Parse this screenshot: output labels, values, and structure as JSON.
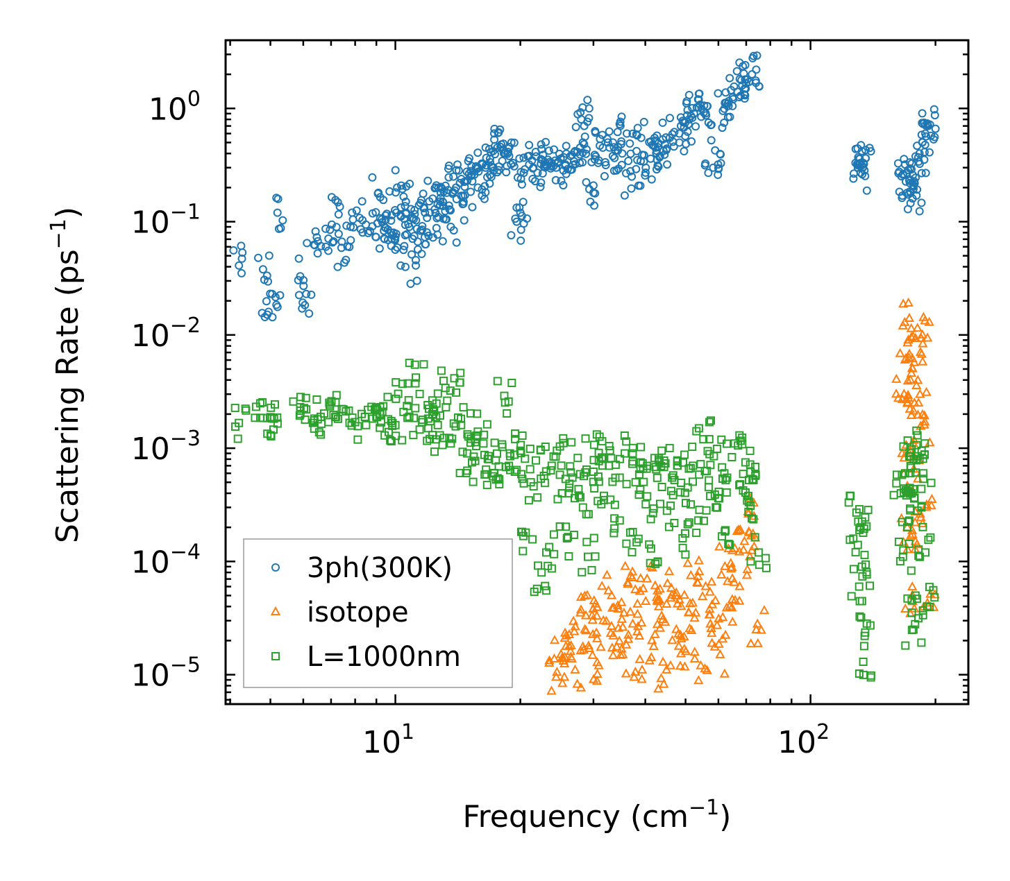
{
  "chart_data": {
    "type": "scatter",
    "title": "",
    "xlabel": "Frequency (cm",
    "xlabel_sup": "−1",
    "xlabel_end": ")",
    "ylabel": "Scattering Rate (ps",
    "ylabel_sup": "−1",
    "ylabel_end": ")",
    "xscale": "log",
    "yscale": "log",
    "xlim": [
      3.9,
      240
    ],
    "ylim": [
      5.5e-06,
      4.0
    ],
    "x_ticks": [
      {
        "value": 10,
        "base": "10",
        "exp": "1"
      },
      {
        "value": 100,
        "base": "10",
        "exp": "2"
      }
    ],
    "y_ticks": [
      {
        "value": 1,
        "base": "10",
        "exp": "0"
      },
      {
        "value": 0.1,
        "base": "10",
        "exp": "−1"
      },
      {
        "value": 0.01,
        "base": "10",
        "exp": "−2"
      },
      {
        "value": 0.001,
        "base": "10",
        "exp": "−3"
      },
      {
        "value": 0.0001,
        "base": "10",
        "exp": "−4"
      },
      {
        "value": 1e-05,
        "base": "10",
        "exp": "−5"
      }
    ],
    "legend_position": "lower-left",
    "series": [
      {
        "name": "3ph(300K)",
        "marker": "circle",
        "color": "#1f77b4",
        "points": [
          [
            4.2,
            0.041
          ],
          [
            4.8,
            0.038
          ],
          [
            4.95,
            0.016
          ],
          [
            5.05,
            0.023
          ],
          [
            5.2,
            0.12
          ],
          [
            5.9,
            0.033
          ],
          [
            6.1,
            0.023
          ],
          [
            6.4,
            0.062
          ],
          [
            6.8,
            0.06
          ],
          [
            7.1,
            0.067
          ],
          [
            7.3,
            0.116
          ],
          [
            7.6,
            0.046
          ],
          [
            7.8,
            0.09
          ],
          [
            8.2,
            0.108
          ],
          [
            8.8,
            0.091
          ],
          [
            9.1,
            0.18
          ],
          [
            9.3,
            0.099
          ],
          [
            9.4,
            0.071
          ],
          [
            9.6,
            0.069
          ],
          [
            9.8,
            0.114
          ],
          [
            9.9,
            0.08
          ],
          [
            10.1,
            0.2
          ],
          [
            10.3,
            0.041
          ],
          [
            10.5,
            0.106
          ],
          [
            10.6,
            0.15
          ],
          [
            10.8,
            0.09
          ],
          [
            11.0,
            0.108
          ],
          [
            11.2,
            0.041
          ],
          [
            11.4,
            0.14
          ],
          [
            11.6,
            0.085
          ],
          [
            11.8,
            0.063
          ],
          [
            12.1,
            0.12
          ],
          [
            12.3,
            0.16
          ],
          [
            12.5,
            0.2
          ],
          [
            12.7,
            0.11
          ],
          [
            13.0,
            0.15
          ],
          [
            13.3,
            0.18
          ],
          [
            13.6,
            0.09
          ],
          [
            13.8,
            0.25
          ],
          [
            14.0,
            0.2
          ],
          [
            14.3,
            0.22
          ],
          [
            14.6,
            0.15
          ],
          [
            14.9,
            0.23
          ],
          [
            15.2,
            0.28
          ],
          [
            15.5,
            0.26
          ],
          [
            15.8,
            0.2
          ],
          [
            16.2,
            0.32
          ],
          [
            16.5,
            0.3
          ],
          [
            16.9,
            0.36
          ],
          [
            17.2,
            0.42
          ],
          [
            17.6,
            0.45
          ],
          [
            18.0,
            0.48
          ],
          [
            18.4,
            0.4
          ],
          [
            18.8,
            0.38
          ],
          [
            19.2,
            0.33
          ],
          [
            19.6,
            0.1
          ],
          [
            20.0,
            0.12
          ],
          [
            20.5,
            0.29
          ],
          [
            21.0,
            0.32
          ],
          [
            21.5,
            0.3
          ],
          [
            22.0,
            0.27
          ],
          [
            22.6,
            0.35
          ],
          [
            23.2,
            0.31
          ],
          [
            23.8,
            0.33
          ],
          [
            24.4,
            0.3
          ],
          [
            25.0,
            0.36
          ],
          [
            25.7,
            0.32
          ],
          [
            26.4,
            0.38
          ],
          [
            27.1,
            0.42
          ],
          [
            27.8,
            0.33
          ],
          [
            28.5,
            0.7
          ],
          [
            29.3,
            1.0
          ],
          [
            30.0,
            0.18
          ],
          [
            30.8,
            0.33
          ],
          [
            31.6,
            0.45
          ],
          [
            32.5,
            0.5
          ],
          [
            33.4,
            0.38
          ],
          [
            34.3,
            0.62
          ],
          [
            35.2,
            0.4
          ],
          [
            36.1,
            0.6
          ],
          [
            37.1,
            0.25
          ],
          [
            38.1,
            0.42
          ],
          [
            39.1,
            0.55
          ],
          [
            40.1,
            0.3
          ],
          [
            41.2,
            0.36
          ],
          [
            42.3,
            0.45
          ],
          [
            43.4,
            0.38
          ],
          [
            44.6,
            0.48
          ],
          [
            45.8,
            0.55
          ],
          [
            47.0,
            0.62
          ],
          [
            48.3,
            0.6
          ],
          [
            49.6,
            0.68
          ],
          [
            51.0,
            0.8
          ],
          [
            52.4,
            0.9
          ],
          [
            53.8,
            1.2
          ],
          [
            55.3,
            0.92
          ],
          [
            56.8,
            0.75
          ],
          [
            58.3,
            0.3
          ],
          [
            59.9,
            0.32
          ],
          [
            61.5,
            0.95
          ],
          [
            63.2,
            1.1
          ],
          [
            64.9,
            1.25
          ],
          [
            66.7,
            1.4
          ],
          [
            68.5,
            1.6
          ],
          [
            70.4,
            1.8
          ],
          [
            72.3,
            2.0
          ],
          [
            74.0,
            2.2
          ],
          [
            130,
            0.3
          ],
          [
            131,
            0.36
          ],
          [
            132,
            0.27
          ],
          [
            133,
            0.42
          ],
          [
            134,
            0.33
          ],
          [
            167,
            0.26
          ],
          [
            169,
            0.32
          ],
          [
            171,
            0.18
          ],
          [
            173,
            0.23
          ],
          [
            175,
            0.29
          ],
          [
            177,
            0.21
          ],
          [
            180,
            0.17
          ],
          [
            183,
            0.4
          ],
          [
            186,
            0.5
          ],
          [
            189,
            0.6
          ],
          [
            192,
            0.7
          ],
          [
            194,
            0.72
          ]
        ]
      },
      {
        "name": "isotope",
        "marker": "triangle",
        "color": "#ff7f0e",
        "points": [
          [
            24.5,
            1.05e-05
          ],
          [
            25.2,
            1.4e-05
          ],
          [
            25.8,
            2.2e-05
          ],
          [
            26.5,
            1.8e-05
          ],
          [
            27.1,
            1.1e-05
          ],
          [
            27.9,
            3.5e-05
          ],
          [
            28.6,
            2.5e-05
          ],
          [
            29.3,
            1.7e-05
          ],
          [
            30.1,
            4.5e-05
          ],
          [
            30.9,
            1.2e-05
          ],
          [
            31.7,
            3e-05
          ],
          [
            32.6,
            5.5e-05
          ],
          [
            33.5,
            2.2e-05
          ],
          [
            34.4,
            3.8e-05
          ],
          [
            35.3,
            1.5e-05
          ],
          [
            36.3,
            6.5e-05
          ],
          [
            37.3,
            2.8e-05
          ],
          [
            38.3,
            4.2e-05
          ],
          [
            39.3,
            1.1e-05
          ],
          [
            40.4,
            7e-05
          ],
          [
            41.5,
            2e-05
          ],
          [
            42.6,
            4.8e-05
          ],
          [
            43.8,
            3.3e-05
          ],
          [
            45.0,
            1.1e-05
          ],
          [
            46.2,
            5.8e-05
          ],
          [
            47.5,
            2.5e-05
          ],
          [
            48.8,
            4e-05
          ],
          [
            50.1,
            1.6e-05
          ],
          [
            51.5,
            7.5e-05
          ],
          [
            52.9,
            3.5e-05
          ],
          [
            54.4,
            1.2e-05
          ],
          [
            55.9,
            6e-05
          ],
          [
            57.4,
            2.8e-05
          ],
          [
            59.0,
            4.5e-05
          ],
          [
            60.6,
            1.5e-05
          ],
          [
            62.2,
            9e-05
          ],
          [
            63.9,
            4e-05
          ],
          [
            65.7,
            0.00013
          ],
          [
            67.5,
            6e-05
          ],
          [
            69.3,
            0.00015
          ],
          [
            71.2,
            0.00018
          ],
          [
            73.1,
            0.00025
          ],
          [
            74.5,
            2.8e-05
          ],
          [
            168,
            0.003
          ],
          [
            169,
            0.006
          ],
          [
            170,
            0.0009
          ],
          [
            171,
            0.0002
          ],
          [
            172,
            0.009
          ],
          [
            173,
            0.014
          ],
          [
            174,
            0.004
          ],
          [
            175,
            0.0004
          ],
          [
            176,
            5e-05
          ],
          [
            177,
            0.0008
          ],
          [
            178,
            0.0025
          ],
          [
            179,
            0.00015
          ],
          [
            182,
            0.0025
          ],
          [
            184,
            0.007
          ],
          [
            186,
            0.01
          ],
          [
            188,
            0.0016
          ],
          [
            190,
            0.0003
          ],
          [
            192,
            4e-05
          ]
        ]
      },
      {
        "name": "L=1000nm",
        "marker": "square",
        "color": "#2ca02c",
        "points": [
          [
            4.2,
            0.00167
          ],
          [
            4.8,
            0.00185
          ],
          [
            5.0,
            0.00188
          ],
          [
            5.1,
            0.00182
          ],
          [
            5.9,
            0.0023
          ],
          [
            6.1,
            0.0022
          ],
          [
            6.5,
            0.0018
          ],
          [
            6.9,
            0.0017
          ],
          [
            7.2,
            0.0019
          ],
          [
            7.5,
            0.0022
          ],
          [
            8.0,
            0.0017
          ],
          [
            8.5,
            0.0016
          ],
          [
            9.0,
            0.0019
          ],
          [
            9.3,
            0.0021
          ],
          [
            9.6,
            0.0018
          ],
          [
            10.0,
            0.0016
          ],
          [
            10.4,
            0.0037
          ],
          [
            10.8,
            0.0019
          ],
          [
            11.2,
            0.0042
          ],
          [
            11.6,
            0.0017
          ],
          [
            12.0,
            0.0015
          ],
          [
            12.4,
            0.0021
          ],
          [
            12.8,
            0.0013
          ],
          [
            13.2,
            0.0034
          ],
          [
            13.6,
            0.0011
          ],
          [
            14.0,
            0.0031
          ],
          [
            14.4,
            0.0016
          ],
          [
            14.9,
            0.0009
          ],
          [
            15.3,
            0.00075
          ],
          [
            15.8,
            0.0014
          ],
          [
            16.3,
            0.0011
          ],
          [
            16.8,
            0.0008
          ],
          [
            17.3,
            0.0006
          ],
          [
            17.8,
            0.00048
          ],
          [
            18.3,
            0.0029
          ],
          [
            18.9,
            0.00085
          ],
          [
            19.4,
            0.00062
          ],
          [
            20.0,
            0.00095
          ],
          [
            20.6,
            0.00018
          ],
          [
            21.2,
            0.0005
          ],
          [
            21.8,
            0.00078
          ],
          [
            22.5,
            8e-05
          ],
          [
            23.1,
            0.00012
          ],
          [
            23.8,
            0.0007
          ],
          [
            24.5,
            0.00095
          ],
          [
            25.2,
            0.0004
          ],
          [
            25.9,
            0.00016
          ],
          [
            26.7,
            0.00055
          ],
          [
            27.5,
            0.00082
          ],
          [
            28.3,
            0.0003
          ],
          [
            29.1,
            0.00011
          ],
          [
            30.0,
            0.00062
          ],
          [
            30.9,
            0.00091
          ],
          [
            31.8,
            0.00038
          ],
          [
            32.7,
            0.0007
          ],
          [
            33.7,
            0.00024
          ],
          [
            34.7,
            0.00055
          ],
          [
            35.7,
            0.0009
          ],
          [
            36.8,
            0.00018
          ],
          [
            37.9,
            0.0005
          ],
          [
            39.0,
            0.00075
          ],
          [
            40.1,
            0.00032
          ],
          [
            41.3,
            0.00013
          ],
          [
            42.5,
            0.00065
          ],
          [
            43.8,
            0.00095
          ],
          [
            45.1,
            0.00028
          ],
          [
            46.4,
            0.00055
          ],
          [
            47.8,
            0.00078
          ],
          [
            49.2,
            0.00016
          ],
          [
            50.6,
            0.00045
          ],
          [
            52.1,
            0.0007
          ],
          [
            53.7,
            0.00023
          ],
          [
            55.2,
            0.0012
          ],
          [
            56.9,
            0.00052
          ],
          [
            58.5,
            0.00085
          ],
          [
            60.3,
            0.00036
          ],
          [
            62.0,
            0.0006
          ],
          [
            63.9,
            0.00014
          ],
          [
            65.7,
            0.0011
          ],
          [
            67.7,
            0.00048
          ],
          [
            69.7,
            0.00075
          ],
          [
            71.7,
            0.00031
          ],
          [
            73.8,
            0.00058
          ],
          [
            75.0,
            0.00012
          ],
          [
            129,
            0.00027
          ],
          [
            130,
            0.00014
          ],
          [
            131,
            6e-05
          ],
          [
            132,
            0.0002
          ],
          [
            133,
            9e-05
          ],
          [
            134,
            1.3e-05
          ],
          [
            135,
            2.2e-05
          ],
          [
            165,
            0.0004
          ],
          [
            167,
            0.00011
          ],
          [
            169,
            0.0006
          ],
          [
            171,
            0.0002
          ],
          [
            173,
            0.00085
          ],
          [
            175,
            0.0004
          ],
          [
            177,
            2.5e-05
          ],
          [
            179,
            5e-05
          ],
          [
            181,
            0.0013
          ],
          [
            183,
            0.0008
          ],
          [
            185,
            0.0003
          ],
          [
            187,
            0.0006
          ],
          [
            189,
            0.00012
          ],
          [
            191,
            4e-05
          ]
        ]
      }
    ]
  }
}
